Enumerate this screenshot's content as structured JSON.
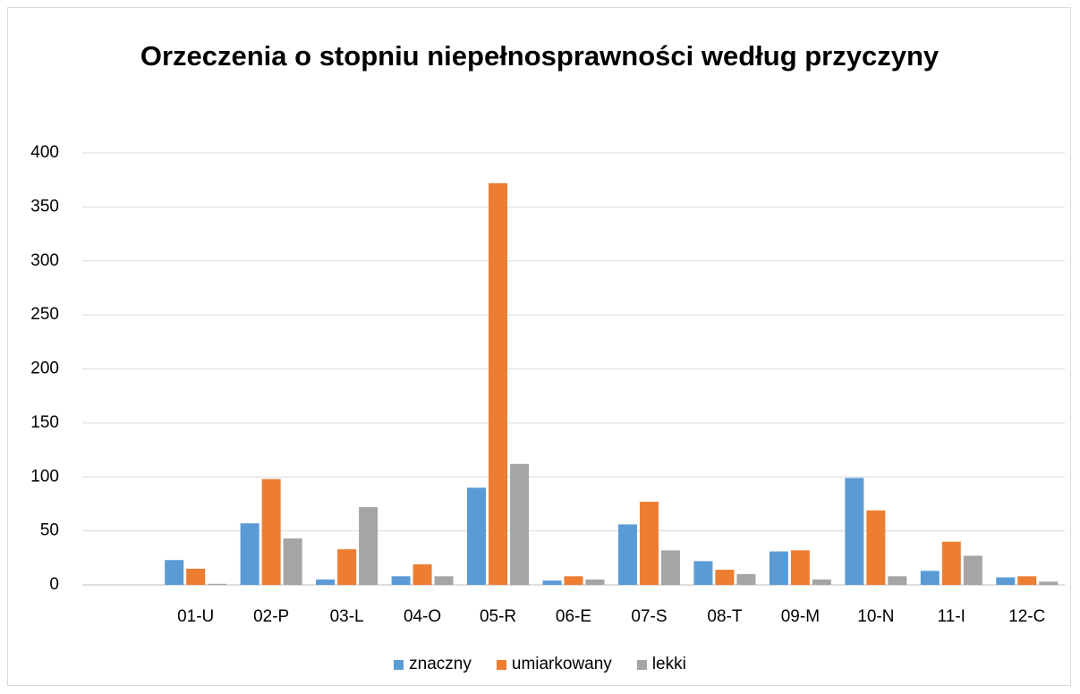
{
  "chart_data": {
    "type": "bar",
    "title": "Orzeczenia o stopniu niepełnosprawności według przyczyny",
    "categories": [
      null,
      "01-U",
      "02-P",
      "03-L",
      "04-O",
      "05-R",
      "06-E",
      "07-S",
      "08-T",
      "09-M",
      "10-N",
      "11-I",
      "12-C"
    ],
    "series": [
      {
        "name": "znaczny",
        "color": "#5b9bd5",
        "values": [
          null,
          23,
          57,
          5,
          8,
          90,
          4,
          56,
          22,
          31,
          99,
          13,
          7
        ]
      },
      {
        "name": "umiarkowany",
        "color": "#ed7d31",
        "values": [
          null,
          15,
          98,
          33,
          19,
          372,
          8,
          77,
          14,
          32,
          69,
          40,
          8
        ]
      },
      {
        "name": "lekki",
        "color": "#a5a5a5",
        "values": [
          null,
          1,
          43,
          72,
          8,
          112,
          5,
          32,
          10,
          5,
          8,
          27,
          3
        ]
      }
    ],
    "ylim": [
      0,
      400
    ],
    "yticks": [
      0,
      50,
      100,
      150,
      200,
      250,
      300,
      350,
      400
    ],
    "grid": true,
    "legend": "bottom"
  }
}
